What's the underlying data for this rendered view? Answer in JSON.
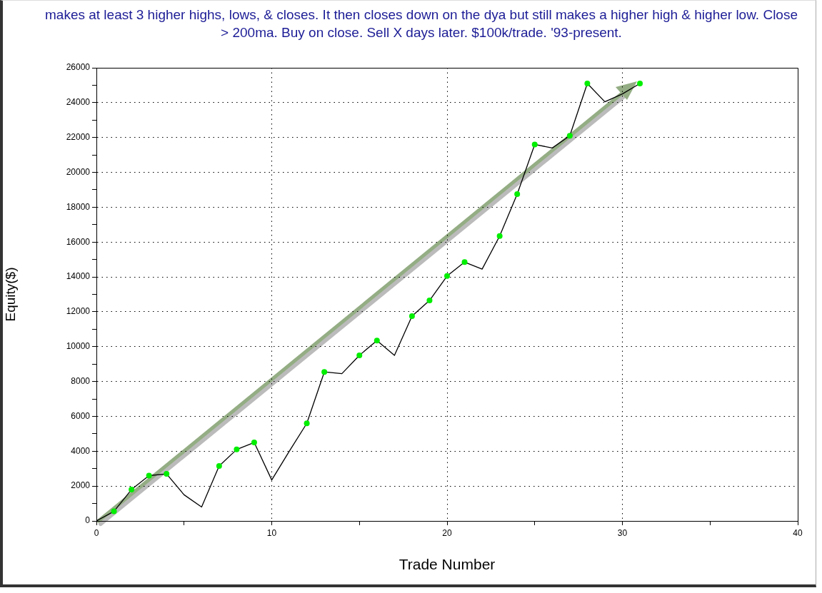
{
  "chart_data": {
    "type": "line",
    "title": "makes at least 3 higher highs, lows, & closes. It then closes down on the dya but still makes a higher high & higher low. Close > 200ma. Buy on close. Sell X days later. $100k/trade. '93-present.",
    "xlabel": "Trade Number",
    "ylabel": "Equity($)",
    "xlim": [
      0,
      40
    ],
    "ylim": [
      0,
      26000
    ],
    "xticks": [
      0,
      {
        "value": 5,
        "label": null
      },
      10,
      {
        "value": 15,
        "label": null
      },
      20,
      {
        "value": 25,
        "label": null
      },
      30,
      {
        "value": 35,
        "label": null
      },
      40
    ],
    "yticks": [
      0,
      {
        "value": 1000,
        "label": null
      },
      2000,
      {
        "value": 3000,
        "label": null
      },
      4000,
      {
        "value": 5000,
        "label": null
      },
      6000,
      {
        "value": 7000,
        "label": null
      },
      8000,
      {
        "value": 9000,
        "label": null
      },
      10000,
      {
        "value": 11000,
        "label": null
      },
      12000,
      {
        "value": 13000,
        "label": null
      },
      14000,
      {
        "value": 15000,
        "label": null
      },
      16000,
      {
        "value": 17000,
        "label": null
      },
      18000,
      {
        "value": 19000,
        "label": null
      },
      20000,
      {
        "value": 21000,
        "label": null
      },
      22000,
      {
        "value": 23000,
        "label": null
      },
      24000,
      {
        "value": 25000,
        "label": null
      },
      26000
    ],
    "grid": true,
    "series": [
      {
        "type": "line",
        "color": "#000000",
        "marker": "none",
        "x": [
          0,
          1,
          2,
          3,
          4,
          5,
          6,
          7,
          8,
          9,
          10,
          11,
          12,
          13,
          14,
          15,
          16,
          17,
          18,
          19,
          20,
          21,
          22,
          23,
          24,
          25,
          26,
          27,
          28,
          29,
          30,
          31
        ],
        "values": [
          0,
          550,
          1800,
          2600,
          2700,
          1500,
          800,
          3150,
          4100,
          4500,
          2350,
          4000,
          5600,
          8550,
          8450,
          9500,
          10350,
          9500,
          11750,
          12650,
          14050,
          14850,
          14450,
          16350,
          18750,
          21600,
          21400,
          22100,
          25100,
          24050,
          24500,
          25100
        ]
      },
      {
        "type": "scatter",
        "color": "#00ee00",
        "marker": "circle",
        "x": [
          1,
          2,
          3,
          4,
          7,
          8,
          9,
          12,
          13,
          15,
          16,
          18,
          19,
          20,
          21,
          23,
          24,
          25,
          27,
          28,
          31
        ],
        "values": [
          550,
          1800,
          2600,
          2700,
          3150,
          4100,
          4500,
          5600,
          8550,
          9500,
          10350,
          11750,
          12650,
          14050,
          14850,
          16350,
          18750,
          21600,
          22100,
          25100,
          25100
        ]
      }
    ]
  }
}
